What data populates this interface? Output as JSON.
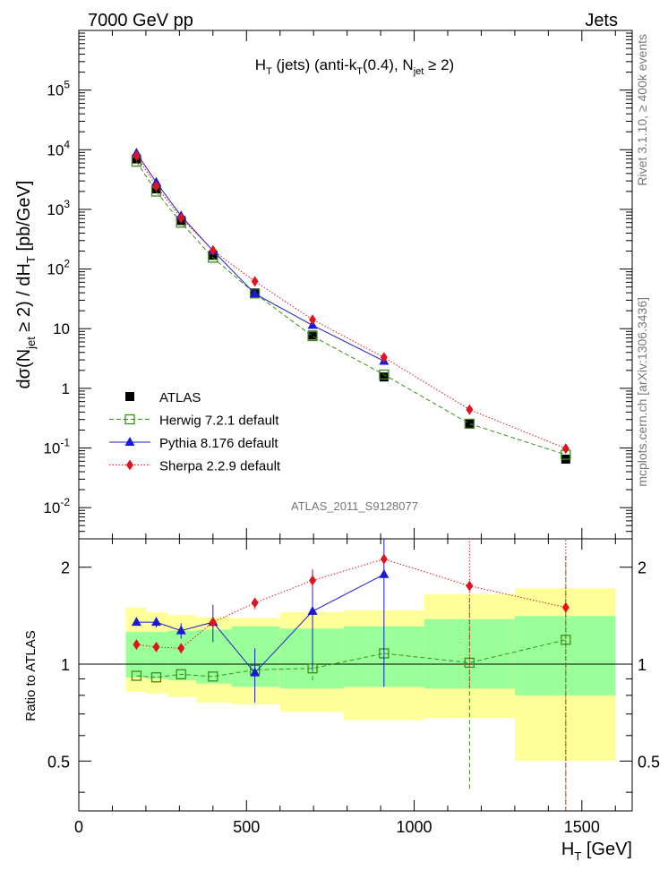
{
  "header": {
    "left": "7000 GeV pp",
    "right": "Jets"
  },
  "side_labels": {
    "rivet": "Rivet 3.1.10, ≥ 400k events",
    "mcplots": "mcplots.cern.ch [arXiv:1306.3436]"
  },
  "watermark": "ATLAS_2011_S9128077",
  "chart_data": {
    "type": "scatter",
    "title": "H_T (jets) (anti-k_T(0.4), N_jet ≥ 2)",
    "xlabel": "H_T [GeV]",
    "ylabel": "dσ(N_jet ≥ 2) / dH_T [pb/GeV]",
    "ratio_ylabel": "Ratio to ATLAS",
    "xlim": [
      0,
      1650
    ],
    "ylim": [
      0.003,
      1000000
    ],
    "ratio_ylim": [
      0.35,
      2.45
    ],
    "x_ticks": [
      "0",
      "500",
      "1000",
      "1500"
    ],
    "y_ticks": [
      "10^-2",
      "10^-1",
      "1",
      "10",
      "10^2",
      "10^3",
      "10^4",
      "10^5"
    ],
    "ratio_ticks": [
      "0.5",
      "1",
      "2"
    ],
    "bins": [
      [
        140,
        200
      ],
      [
        200,
        265
      ],
      [
        265,
        350
      ],
      [
        350,
        455
      ],
      [
        455,
        600
      ],
      [
        600,
        790
      ],
      [
        790,
        1030
      ],
      [
        1030,
        1300
      ],
      [
        1300,
        1600
      ]
    ],
    "series": [
      {
        "name": "ATLAS",
        "color": "#000000",
        "marker": "square-filled",
        "x": [
          172,
          231,
          305,
          400,
          525,
          697,
          910,
          1165,
          1452
        ],
        "y": [
          7000,
          2200,
          650,
          170,
          40,
          7.8,
          1.55,
          0.25,
          0.065
        ]
      },
      {
        "name": "Herwig 7.2.1 default",
        "color": "#3a8f1a",
        "marker": "square-open",
        "line": "dashed",
        "x": [
          172,
          231,
          305,
          400,
          525,
          697,
          910,
          1165,
          1452
        ],
        "y": [
          6300,
          1990,
          600,
          155,
          39,
          7.5,
          1.7,
          0.255,
          0.077
        ],
        "ratio": [
          0.92,
          0.91,
          0.93,
          0.915,
          0.96,
          0.97,
          1.08,
          1.01,
          1.19
        ],
        "ratio_err": [
          0,
          0,
          0,
          0,
          0,
          0.08,
          0,
          0.6,
          1.0
        ]
      },
      {
        "name": "Pythia 8.176 default",
        "color": "#1a1ad6",
        "marker": "triangle",
        "line": "solid",
        "x": [
          172,
          231,
          305,
          400,
          525,
          697,
          910
        ],
        "y": [
          8800,
          2850,
          780,
          203,
          38.5,
          11.4,
          2.86
        ],
        "ratio": [
          1.35,
          1.35,
          1.27,
          1.35,
          0.94,
          1.46,
          1.9
        ],
        "ratio_err": [
          0.03,
          0.05,
          0.07,
          0.18,
          0.18,
          0.5,
          1.05
        ]
      },
      {
        "name": "Sherpa 2.2.9 default",
        "color": "#e0141e",
        "marker": "diamond",
        "line": "dotted",
        "x": [
          172,
          231,
          305,
          400,
          525,
          697,
          910,
          1165,
          1452
        ],
        "y": [
          7900,
          2450,
          720,
          205,
          62,
          14.2,
          3.3,
          0.44,
          0.098
        ],
        "ratio": [
          1.15,
          1.13,
          1.12,
          1.35,
          1.55,
          1.82,
          2.12,
          1.75,
          1.5
        ],
        "ratio_err": [
          0,
          0,
          0,
          0,
          0.07,
          0.15,
          0.05,
          0.9,
          1.2
        ]
      }
    ],
    "ratio_bands": {
      "inner": [
        [
          0.91,
          1.26
        ],
        [
          0.9,
          1.26
        ],
        [
          0.89,
          1.27
        ],
        [
          0.87,
          1.28
        ],
        [
          0.85,
          1.31
        ],
        [
          0.84,
          1.29
        ],
        [
          0.85,
          1.31
        ],
        [
          0.84,
          1.38
        ],
        [
          0.8,
          1.41
        ]
      ],
      "outer": [
        [
          0.82,
          1.5
        ],
        [
          0.81,
          1.45
        ],
        [
          0.79,
          1.42
        ],
        [
          0.76,
          1.4
        ],
        [
          0.75,
          1.39
        ],
        [
          0.71,
          1.45
        ],
        [
          0.67,
          1.47
        ],
        [
          0.68,
          1.65
        ],
        [
          0.5,
          1.72
        ]
      ]
    },
    "legend_position": "bottom-left"
  }
}
